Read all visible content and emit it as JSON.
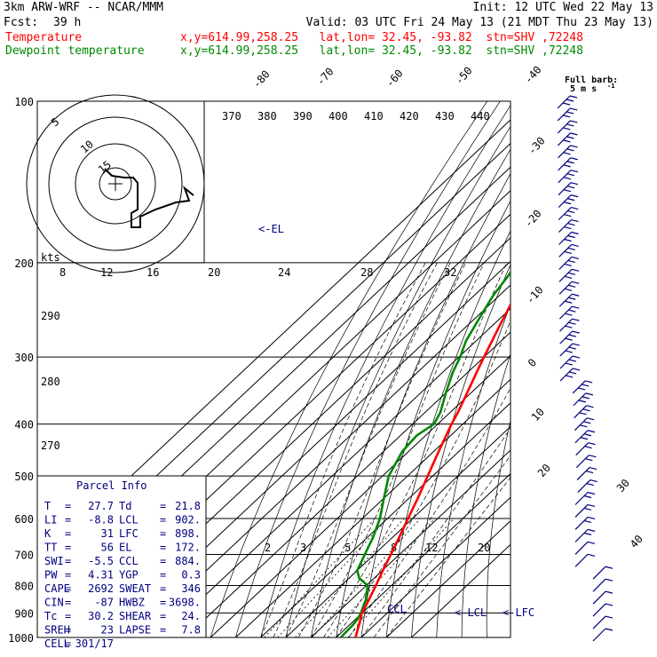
{
  "header": {
    "model": "3km ARW-WRF -- NCAR/MMM",
    "init": "Init: 12 UTC Wed 22 May 13",
    "fcst_label": "Fcst:",
    "fcst_value": "39 h",
    "valid": "Valid: 03 UTC Fri 24 May 13 (21 MDT Thu 23 May 13)",
    "temp_label": "Temperature",
    "temp_loc": "x,y=614.99,258.25   lat,lon= 32.45, -93.82  stn=SHV ,72248",
    "dew_label": "Dewpoint temperature",
    "dew_loc": "x,y=614.99,258.25   lat,lon= 32.45, -93.82  stn=SHV ,72248"
  },
  "colors": {
    "temperature": "#ff0000",
    "dewpoint": "#008800",
    "info": "#000080",
    "barb": "#000080"
  },
  "chart_data": {
    "type": "line",
    "diagram": "skew-T log-P",
    "pressure_levels": [
      100,
      200,
      300,
      400,
      500,
      600,
      700,
      800,
      900,
      1000
    ],
    "pressure_labels": [
      "100",
      "200",
      "300",
      "400",
      "500",
      "600",
      "700",
      "800",
      "900",
      "1000"
    ],
    "isotherm_labels": [
      "-80",
      "-70",
      "-60",
      "-50",
      "-40",
      "-30",
      "-20",
      "-10",
      "0",
      "10",
      "20",
      "30",
      "40"
    ],
    "theta_e_labels": [
      "370",
      "380",
      "390",
      "400",
      "410",
      "420",
      "430",
      "440"
    ],
    "theta_labels": [
      "290",
      "280",
      "270"
    ],
    "mixing_ratio_labels": [
      "2",
      "3",
      "5",
      "8",
      "12",
      "20"
    ],
    "series": [
      {
        "name": "Temperature",
        "p": [
          1000,
          950,
          925,
          900,
          875,
          850,
          800,
          750,
          700,
          650,
          600,
          550,
          500,
          450,
          400,
          380,
          350,
          320,
          300,
          260,
          240,
          220,
          200,
          190,
          180,
          165,
          150,
          135,
          120,
          110,
          100
        ],
        "t": [
          27.7,
          24.0,
          22.0,
          19.8,
          18.5,
          17.0,
          13.8,
          10.2,
          6.6,
          2.6,
          -1.8,
          -6.5,
          -12.0,
          -18.0,
          -24.5,
          -27.0,
          -31.5,
          -36.5,
          -40.0,
          -47.5,
          -51.5,
          -55.5,
          -59.5,
          -60.5,
          -61.5,
          -63.0,
          -64.0,
          -66.0,
          -68.0,
          -70.0,
          -72.0
        ]
      },
      {
        "name": "Dewpoint temperature",
        "p": [
          1000,
          950,
          925,
          900,
          875,
          850,
          800,
          775,
          750,
          700,
          650,
          600,
          550,
          500,
          450,
          420,
          400,
          380,
          350,
          320,
          300,
          280,
          250,
          230,
          210,
          190,
          170,
          160,
          150,
          140,
          130,
          120,
          110,
          100
        ],
        "t": [
          21.8,
          21.4,
          20.8,
          19.5,
          17.6,
          15.8,
          10.5,
          4.0,
          0.0,
          -3.8,
          -7.8,
          -13.0,
          -20.0,
          -27.5,
          -32.5,
          -33.5,
          -31.5,
          -34.0,
          -40.0,
          -46.0,
          -49.5,
          -54.0,
          -59.0,
          -62.5,
          -65.0,
          -70.0,
          -75.0,
          -74.0,
          -73.0,
          -77.0,
          -78.0,
          -77.0,
          -74.0,
          -72.0
        ]
      }
    ],
    "annotations": [
      "<-EL",
      "CCL",
      "<-LCL",
      "<-LFC"
    ],
    "hodograph": {
      "units_label": "kts",
      "ring_labels": [
        "5",
        "10",
        "15"
      ],
      "speed_labels": [
        "8",
        "12",
        "16",
        "20",
        "24",
        "28",
        "32"
      ]
    },
    "wind_barb_label": "Full barb:",
    "wind_barb_units": "5 m s",
    "wind_barb_exp": "-1"
  },
  "parcel": {
    "title": "Parcel Info",
    "rows": [
      [
        "T",
        "=",
        "27.7",
        "Td",
        "=",
        "21.8"
      ],
      [
        "LI",
        "=",
        "-8.8",
        "LCL",
        "=",
        "902."
      ],
      [
        "K",
        "=",
        "31",
        "LFC",
        "=",
        "898."
      ],
      [
        "TT",
        "=",
        "56",
        "EL",
        "=",
        "172."
      ],
      [
        "SWI",
        "=",
        "-5.5",
        "CCL",
        "=",
        "884."
      ],
      [
        "PW",
        "=",
        "4.31",
        "YGP",
        "=",
        "0.3"
      ],
      [
        "CAPE",
        "=",
        "2692",
        "SWEAT",
        "=",
        "346"
      ],
      [
        "CIN",
        "=",
        "-87",
        "HWBZ",
        "=",
        "3698."
      ],
      [
        "Tc",
        "=",
        "30.2",
        "SHEAR",
        "=",
        "24."
      ],
      [
        "SREH",
        "=",
        "23",
        "LAPSE",
        "=",
        "7.8"
      ],
      [
        "CELL",
        "=",
        "301/17",
        "",
        "",
        ""
      ]
    ]
  }
}
